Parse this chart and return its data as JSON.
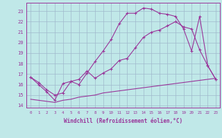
{
  "xlabel": "Windchill (Refroidissement éolien,°C)",
  "bg_color": "#c0e8e8",
  "grid_color": "#a0b8cc",
  "line_color": "#993399",
  "xlim": [
    -0.5,
    23.5
  ],
  "ylim": [
    13.8,
    23.8
  ],
  "yticks": [
    14,
    15,
    16,
    17,
    18,
    19,
    20,
    21,
    22,
    23
  ],
  "xticks": [
    0,
    1,
    2,
    3,
    4,
    5,
    6,
    7,
    8,
    9,
    10,
    11,
    12,
    13,
    14,
    15,
    16,
    17,
    18,
    19,
    20,
    21,
    22,
    23
  ],
  "line1_x": [
    0,
    1,
    2,
    3,
    4,
    5,
    6,
    7,
    8,
    9,
    10,
    11,
    12,
    13,
    14,
    15,
    16,
    17,
    18,
    19,
    20,
    21,
    22,
    23
  ],
  "line1_y": [
    16.7,
    16.0,
    15.3,
    14.5,
    16.1,
    16.3,
    16.0,
    17.1,
    18.2,
    19.2,
    20.3,
    21.8,
    22.8,
    22.8,
    23.3,
    23.2,
    22.8,
    22.7,
    22.5,
    21.3,
    19.2,
    22.5,
    17.8,
    16.5
  ],
  "line2_x": [
    0,
    1,
    2,
    3,
    4,
    5,
    6,
    7,
    8,
    9,
    10,
    11,
    12,
    13,
    14,
    15,
    16,
    17,
    18,
    19,
    20,
    21,
    22,
    23
  ],
  "line2_y": [
    16.7,
    16.2,
    15.5,
    15.0,
    15.2,
    16.3,
    16.5,
    17.3,
    16.6,
    17.1,
    17.5,
    18.3,
    18.5,
    19.5,
    20.5,
    21.0,
    21.2,
    21.6,
    22.0,
    21.5,
    21.3,
    19.3,
    17.8,
    16.5
  ],
  "line3_x": [
    0,
    1,
    2,
    3,
    4,
    5,
    6,
    7,
    8,
    9,
    10,
    11,
    12,
    13,
    14,
    15,
    16,
    17,
    18,
    19,
    20,
    21,
    22,
    23
  ],
  "line3_y": [
    14.6,
    14.5,
    14.4,
    14.3,
    14.5,
    14.6,
    14.8,
    14.9,
    15.0,
    15.2,
    15.3,
    15.4,
    15.5,
    15.6,
    15.7,
    15.8,
    15.9,
    16.0,
    16.1,
    16.2,
    16.3,
    16.4,
    16.5,
    16.6
  ]
}
